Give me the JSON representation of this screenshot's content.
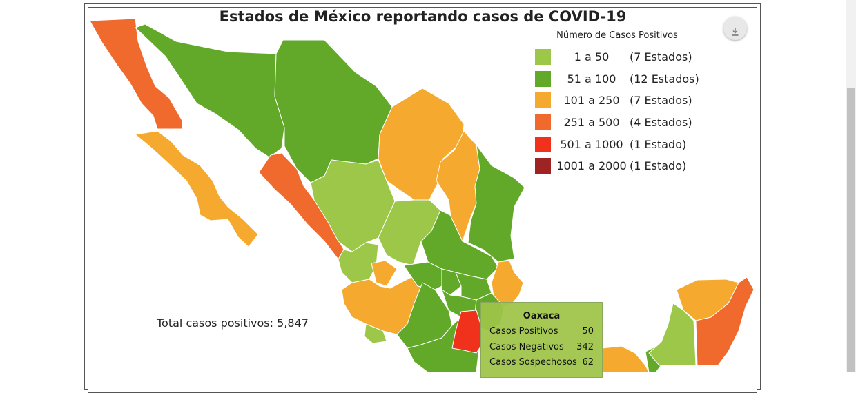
{
  "title": "Estados de México reportando casos de COVID-19",
  "legend": {
    "title": "Número de Casos Positivos",
    "items": [
      {
        "range": "1 a 50",
        "count": "(7 Estados)",
        "color": "#9dc749"
      },
      {
        "range": "51 a 100",
        "count": "(12 Estados)",
        "color": "#62a92a"
      },
      {
        "range": "101 a 250",
        "count": "(7 Estados)",
        "color": "#f5a92e"
      },
      {
        "range": "251 a 500",
        "count": "(4 Estados)",
        "color": "#f06a2e"
      },
      {
        "range": "501 a 1000",
        "count": "(1 Estado)",
        "color": "#f0311b"
      },
      {
        "range": "1001 a 2000",
        "count": "(1 Estado)",
        "color": "#9e2323"
      }
    ]
  },
  "total": "Total casos positivos: 5,847",
  "tooltip": {
    "state": "Oaxaca",
    "rows": [
      {
        "label": "Casos Positivos",
        "value": "50"
      },
      {
        "label": "Casos Negativos",
        "value": "342"
      },
      {
        "label": "Casos Sospechosos",
        "value": "62"
      }
    ]
  },
  "colors": {
    "green_light": "#9dc749",
    "green": "#62a92a",
    "orange": "#f5a92e",
    "orange_red": "#f06a2e",
    "red": "#f0311b",
    "dark_red": "#9e2323"
  },
  "icons": {
    "download": "download-icon"
  }
}
